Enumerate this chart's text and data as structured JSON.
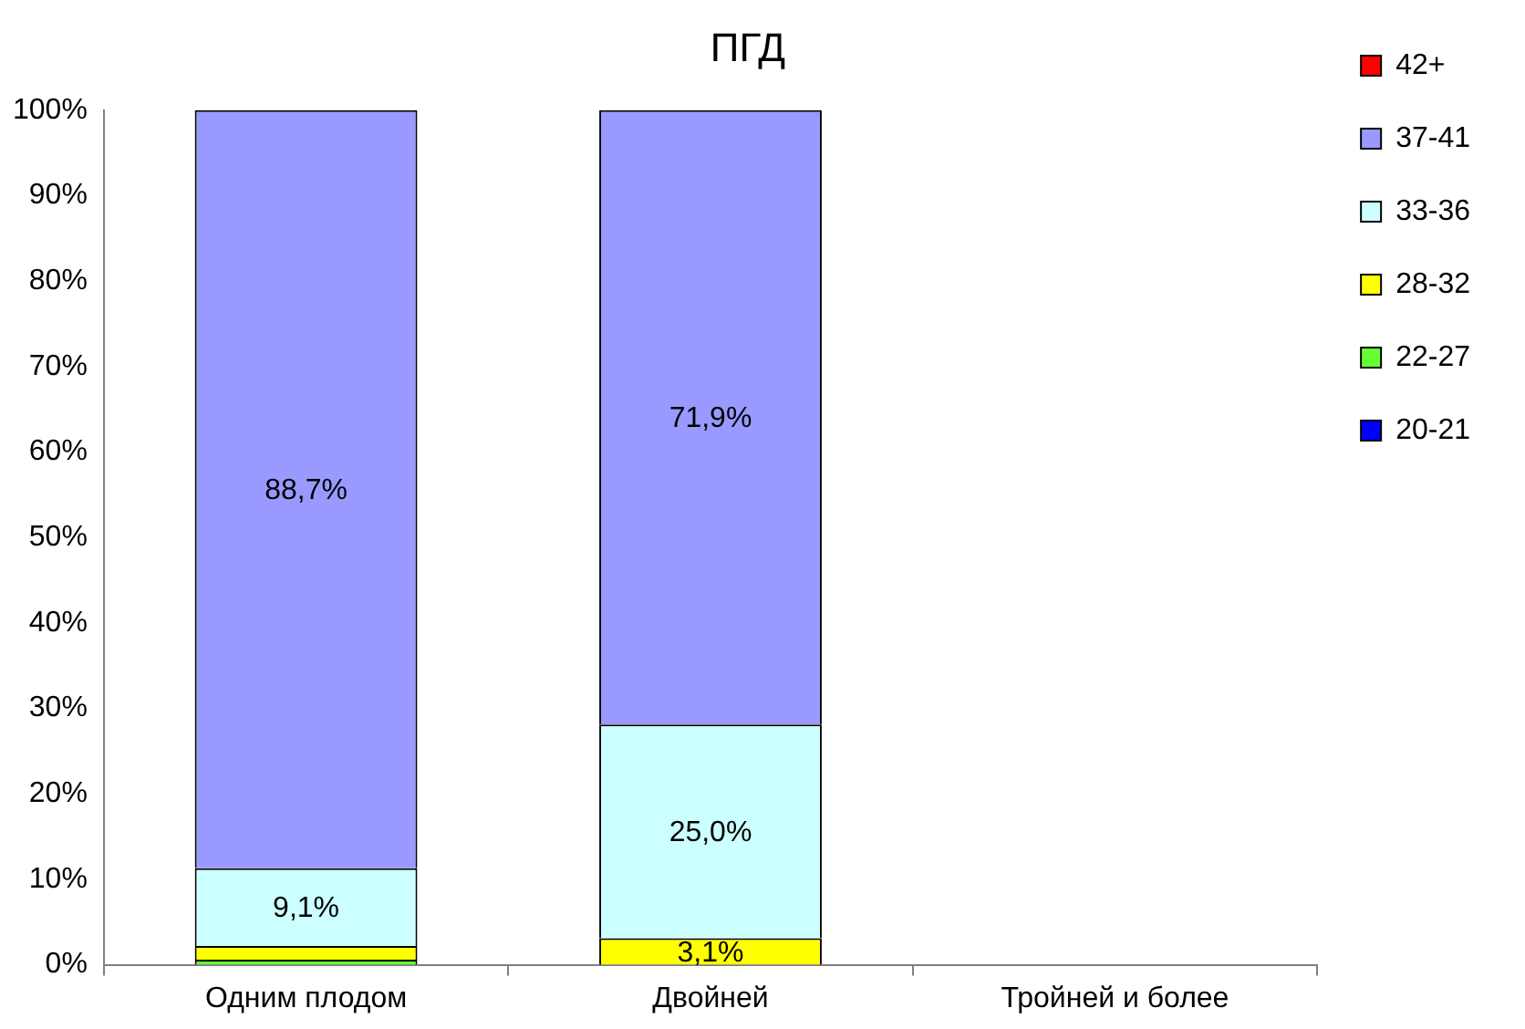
{
  "chart_data": {
    "type": "bar",
    "title": "ПГД",
    "stacked": true,
    "categories": [
      "Одним плодом",
      "Двойней",
      "Тройней и более"
    ],
    "series": [
      {
        "name": "20-21",
        "color": "#0000ff",
        "values": [
          null,
          null,
          null
        ]
      },
      {
        "name": "22-27",
        "color": "#66ff33",
        "values": [
          0.6,
          null,
          null
        ]
      },
      {
        "name": "28-32",
        "color": "#ffff00",
        "values": [
          1.6,
          3.1,
          null
        ],
        "value_labels": [
          null,
          "3,1%",
          null
        ]
      },
      {
        "name": "33-36",
        "color": "#ccffff",
        "values": [
          9.1,
          25.0,
          null
        ],
        "value_labels": [
          "9,1%",
          "25,0%",
          null
        ]
      },
      {
        "name": "37-41",
        "color": "#9999ff",
        "values": [
          88.7,
          71.9,
          null
        ],
        "value_labels": [
          "88,7%",
          "71,9%",
          null
        ]
      },
      {
        "name": "42+",
        "color": "#ff0000",
        "values": [
          null,
          null,
          null
        ]
      }
    ],
    "ylim": [
      0,
      100
    ],
    "yticks": [
      {
        "value": 0,
        "label": "0%"
      },
      {
        "value": 10,
        "label": "10%"
      },
      {
        "value": 20,
        "label": "20%"
      },
      {
        "value": 30,
        "label": "30%"
      },
      {
        "value": 40,
        "label": "40%"
      },
      {
        "value": 50,
        "label": "50%"
      },
      {
        "value": 60,
        "label": "60%"
      },
      {
        "value": 70,
        "label": "70%"
      },
      {
        "value": 80,
        "label": "80%"
      },
      {
        "value": 90,
        "label": "90%"
      },
      {
        "value": 100,
        "label": "100%"
      }
    ],
    "grid": false,
    "legend": "right"
  }
}
